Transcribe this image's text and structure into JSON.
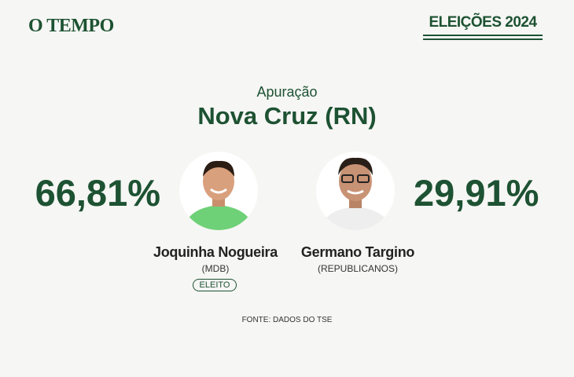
{
  "header": {
    "logo": "O TEMPO",
    "badge": "ELEIÇÕES 2024"
  },
  "title": {
    "kicker": "Apuração",
    "place": "Nova Cruz (RN)"
  },
  "candidates": [
    {
      "percent": "66,81%",
      "name": "Joquinha Nogueira",
      "party": "(MDB)",
      "status": "ELEITO"
    },
    {
      "percent": "29,91%",
      "name": "Germano Targino",
      "party": "(REPUBLICANOS)"
    }
  ],
  "footer": {
    "source": "FONTE: DADOS DO TSE"
  }
}
